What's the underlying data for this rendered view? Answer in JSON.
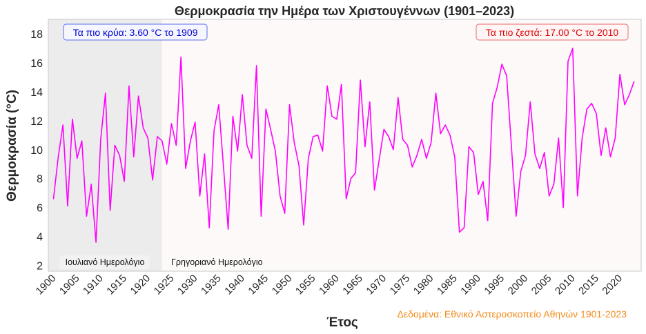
{
  "chart_data": {
    "type": "line",
    "title": "Θερμοκρασία την Ημέρα των Χριστουγέννων (1901–2023)",
    "xlabel": "Έτος",
    "ylabel": "Θερμοκρασία (°C)",
    "xlim": [
      1898.9,
      2024.5
    ],
    "ylim": [
      1.6,
      19.0
    ],
    "grid": false,
    "line_color": "#ff00ff",
    "x_ticks": [
      1900,
      1905,
      1910,
      1915,
      1920,
      1925,
      1930,
      1935,
      1940,
      1945,
      1950,
      1955,
      1960,
      1965,
      1970,
      1975,
      1980,
      1985,
      1990,
      1995,
      2000,
      2005,
      2010,
      2015,
      2020
    ],
    "y_ticks": [
      2,
      4,
      6,
      8,
      10,
      12,
      14,
      16,
      18
    ],
    "x": [
      1900,
      1901,
      1902,
      1903,
      1904,
      1905,
      1906,
      1907,
      1908,
      1909,
      1910,
      1911,
      1912,
      1913,
      1914,
      1915,
      1916,
      1917,
      1918,
      1919,
      1920,
      1921,
      1922,
      1923,
      1924,
      1925,
      1926,
      1927,
      1928,
      1929,
      1930,
      1931,
      1932,
      1933,
      1934,
      1935,
      1936,
      1937,
      1938,
      1939,
      1940,
      1941,
      1942,
      1943,
      1944,
      1945,
      1946,
      1947,
      1948,
      1949,
      1950,
      1951,
      1952,
      1953,
      1954,
      1955,
      1956,
      1957,
      1958,
      1959,
      1960,
      1961,
      1962,
      1963,
      1964,
      1965,
      1966,
      1967,
      1968,
      1969,
      1970,
      1971,
      1972,
      1973,
      1974,
      1975,
      1976,
      1977,
      1978,
      1979,
      1980,
      1981,
      1982,
      1983,
      1984,
      1985,
      1986,
      1987,
      1988,
      1989,
      1990,
      1991,
      1992,
      1993,
      1994,
      1995,
      1996,
      1997,
      1998,
      1999,
      2000,
      2001,
      2002,
      2003,
      2004,
      2005,
      2006,
      2007,
      2008,
      2009,
      2010,
      2011,
      2012,
      2013,
      2014,
      2015,
      2016,
      2017,
      2018,
      2019,
      2020,
      2021,
      2022,
      2023
    ],
    "values": [
      6.6,
      9.5,
      11.7,
      6.1,
      12.1,
      9.4,
      10.6,
      5.4,
      7.6,
      3.6,
      10.7,
      13.9,
      5.8,
      10.3,
      9.6,
      7.8,
      14.4,
      9.5,
      13.7,
      11.5,
      10.8,
      7.9,
      10.9,
      10.6,
      9.0,
      11.8,
      10.3,
      16.4,
      8.7,
      10.6,
      11.9,
      6.8,
      9.7,
      4.6,
      11.3,
      13.1,
      8.9,
      4.5,
      12.3,
      9.9,
      13.8,
      10.3,
      9.4,
      15.8,
      5.4,
      12.8,
      11.4,
      9.9,
      6.8,
      5.6,
      13.1,
      10.5,
      8.9,
      4.8,
      9.4,
      10.9,
      11.0,
      9.9,
      14.4,
      12.3,
      12.1,
      14.5,
      6.6,
      8.0,
      8.4,
      14.8,
      10.2,
      13.3,
      7.2,
      9.3,
      11.4,
      10.9,
      10.0,
      13.6,
      10.7,
      10.3,
      8.8,
      9.6,
      10.7,
      9.4,
      10.5,
      13.9,
      11.1,
      11.7,
      11.0,
      9.5,
      4.3,
      4.6,
      10.2,
      9.8,
      6.9,
      7.8,
      5.1,
      13.2,
      14.3,
      15.9,
      15.1,
      10.3,
      5.4,
      8.5,
      9.6,
      13.3,
      9.7,
      8.7,
      9.8,
      6.8,
      7.6,
      10.8,
      6.0,
      16.1,
      17.0,
      6.8,
      10.8,
      12.8,
      13.2,
      12.5,
      9.6,
      11.5,
      9.5,
      10.8,
      15.2,
      13.1,
      13.8,
      14.7
    ],
    "shaded_regions": [
      {
        "label": "Ιουλιανό Ημερολόγιο",
        "from": 1898.9,
        "to": 1923,
        "color": "#ececec"
      },
      {
        "label": "Γρηγοριανό Ημερολόγιο",
        "from": 1923,
        "to": 2024.5,
        "color": "#fdf9f9"
      }
    ],
    "annotations": {
      "coldest": {
        "text": "Τα πιο κρύα: 3.60 °C το 1909",
        "color": "#0000cc",
        "border": "#5a6fe8"
      },
      "warmest": {
        "text": "Τα πιο ζεστά: 17.00 °C το 2010",
        "color": "#dd0000",
        "border": "#e86a6a"
      }
    },
    "source": {
      "text": "Δεδομένα: Εθνικό Αστεροσκοπείο Αθηνών 1901-2023",
      "color": "#f28c1c"
    }
  }
}
